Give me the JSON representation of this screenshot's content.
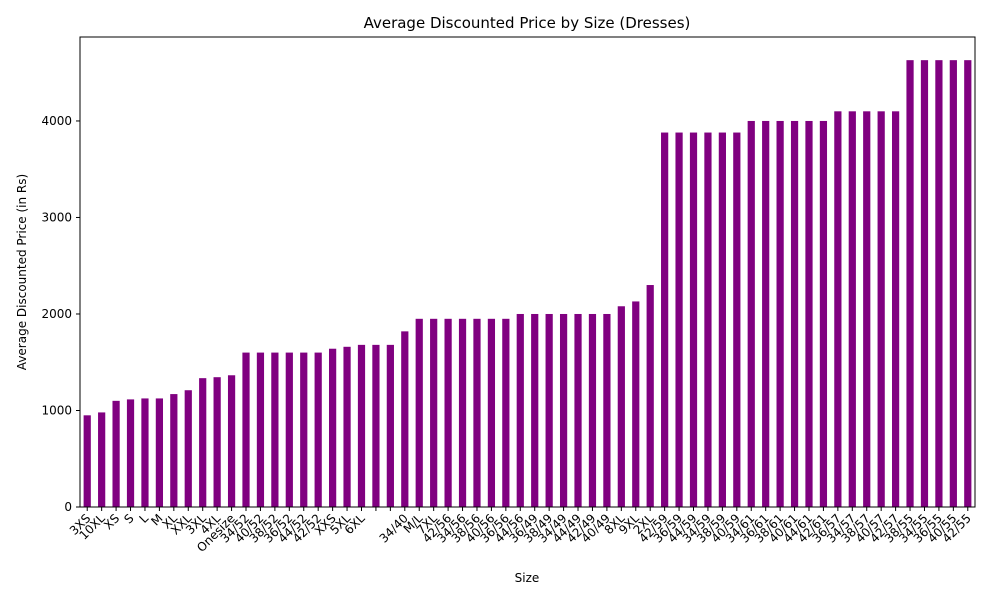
{
  "chart_data": {
    "type": "bar",
    "title": "Average Discounted Price by Size (Dresses)",
    "xlabel": "Size",
    "ylabel": "Average Discounted Price (in Rs)",
    "categories": [
      "3XS",
      "10XL",
      "XS",
      "S",
      "L",
      "M",
      "XL",
      "XXL",
      "3XL",
      "4XL",
      "Onesize",
      "34/52",
      "40/52",
      "38/52",
      "36/52",
      "44/52",
      "42/52",
      "XXS",
      "5XL",
      "6XL",
      null,
      null,
      "34/40",
      "M/L",
      "7XL",
      "42/56",
      "34/56",
      "38/56",
      "40/56",
      "36/56",
      "44/56",
      "36/49",
      "38/49",
      "34/49",
      "44/49",
      "42/49",
      "40/49",
      "8XL",
      "9XL",
      "2XL",
      "42/59",
      "36/59",
      "44/59",
      "34/59",
      "38/59",
      "40/59",
      "34/61",
      "36/61",
      "38/61",
      "40/61",
      "44/61",
      "42/61",
      "36/57",
      "34/57",
      "38/57",
      "40/57",
      "42/57",
      "38/55",
      "34/55",
      "36/55",
      "40/55",
      "42/55"
    ],
    "values": [
      950,
      980,
      1100,
      1115,
      1125,
      1125,
      1170,
      1210,
      1335,
      1345,
      1365,
      1600,
      1600,
      1600,
      1600,
      1600,
      1600,
      1640,
      1660,
      1680,
      1680,
      1680,
      1820,
      1950,
      1950,
      1950,
      1950,
      1950,
      1950,
      1950,
      2000,
      2000,
      2000,
      2000,
      2000,
      2000,
      2000,
      2080,
      2130,
      2300,
      3880,
      3880,
      3880,
      3880,
      3880,
      3880,
      4000,
      4000,
      4000,
      4000,
      4000,
      4000,
      4100,
      4100,
      4100,
      4100,
      4100,
      4630,
      4630,
      4630,
      4630,
      4630
    ],
    "color": "#800080",
    "ylim": [
      0,
      4870
    ],
    "yticks": [
      0,
      1000,
      2000,
      3000,
      4000
    ],
    "grid": false
  }
}
